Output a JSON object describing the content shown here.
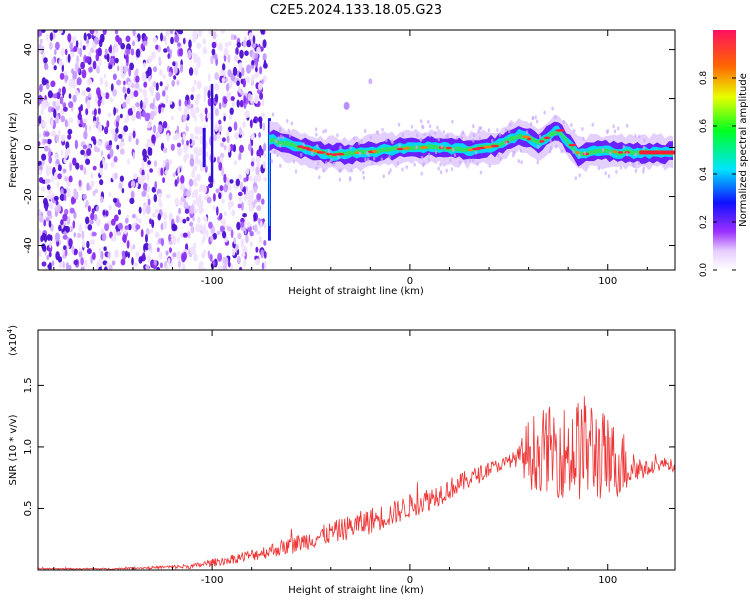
{
  "title": "C2E5.2024.133.18.05.G23",
  "colorbar": {
    "label": "Normalized spectral amplitude",
    "ticks": [
      "0.0",
      "0.2",
      "0.4",
      "0.6",
      "0.8"
    ],
    "tick_values": [
      0.0,
      0.2,
      0.4,
      0.6,
      0.8
    ],
    "range": [
      0,
      1
    ]
  },
  "chart_data": [
    {
      "type": "heatmap",
      "ylabel": "Frequency (Hz)",
      "xlabel": "Height of straight line (km)",
      "xlim": [
        -188,
        134
      ],
      "ylim": [
        -50,
        48
      ],
      "xticks": [
        "-100",
        "0",
        "100"
      ],
      "xtick_values": [
        -100,
        0,
        100
      ],
      "yticks": [
        "40",
        "20",
        "0",
        "-20",
        "-40"
      ],
      "ytick_values": [
        40,
        20,
        0,
        -20,
        -40
      ],
      "noise_region_x": [
        -188,
        -73
      ],
      "sparse_gap_x": [
        -110,
        -103
      ],
      "signal_start_x": -71,
      "tone_frequency_hz": 0,
      "ridge_points": [
        {
          "x": -70,
          "y": 3
        },
        {
          "x": -55,
          "y": 0
        },
        {
          "x": -40,
          "y": -3
        },
        {
          "x": -25,
          "y": -2
        },
        {
          "x": -10,
          "y": -1
        },
        {
          "x": 0,
          "y": 0
        },
        {
          "x": 15,
          "y": 0
        },
        {
          "x": 30,
          "y": -1
        },
        {
          "x": 45,
          "y": 1
        },
        {
          "x": 55,
          "y": 5
        },
        {
          "x": 65,
          "y": 2
        },
        {
          "x": 75,
          "y": 7
        },
        {
          "x": 85,
          "y": -3
        },
        {
          "x": 95,
          "y": -1
        },
        {
          "x": 105,
          "y": -2
        },
        {
          "x": 115,
          "y": -2
        },
        {
          "x": 134,
          "y": -2
        }
      ]
    },
    {
      "type": "line",
      "ylabel": "SNR (10 * v/v)",
      "y_multiplier_label": "(x10",
      "y_multiplier_exp": "4",
      "xlabel": "Height of straight line (km)",
      "xlim": [
        -188,
        134
      ],
      "ylim": [
        0,
        1.95
      ],
      "xticks": [
        "-100",
        "0",
        "100"
      ],
      "xtick_values": [
        -100,
        0,
        100
      ],
      "yticks": [
        "0.5",
        "1.0",
        "1.5"
      ],
      "ytick_values": [
        0.5,
        1.0,
        1.5
      ],
      "series": [
        {
          "color": "#ee3333",
          "x": [
            -188,
            -170,
            -150,
            -130,
            -110,
            -100,
            -90,
            -80,
            -70,
            -60,
            -50,
            -40,
            -30,
            -20,
            -10,
            0,
            10,
            20,
            30,
            40,
            50,
            55,
            60,
            70,
            80,
            90,
            100,
            110,
            115,
            120,
            125,
            130,
            134
          ],
          "y": [
            0.01,
            0.01,
            0.01,
            0.02,
            0.03,
            0.06,
            0.09,
            0.12,
            0.16,
            0.2,
            0.25,
            0.3,
            0.35,
            0.4,
            0.45,
            0.52,
            0.58,
            0.66,
            0.74,
            0.82,
            0.88,
            0.92,
            0.95,
            0.98,
            0.95,
            1.0,
            0.9,
            0.86,
            0.83,
            0.82,
            0.85,
            0.87,
            0.83
          ],
          "noise_amplitude": [
            0.005,
            0.005,
            0.006,
            0.01,
            0.02,
            0.03,
            0.04,
            0.05,
            0.06,
            0.07,
            0.08,
            0.09,
            0.1,
            0.11,
            0.1,
            0.1,
            0.1,
            0.09,
            0.08,
            0.06,
            0.05,
            0.08,
            0.3,
            0.35,
            0.4,
            0.45,
            0.35,
            0.25,
            0.12,
            0.06,
            0.05,
            0.05,
            0.05
          ]
        }
      ]
    }
  ]
}
